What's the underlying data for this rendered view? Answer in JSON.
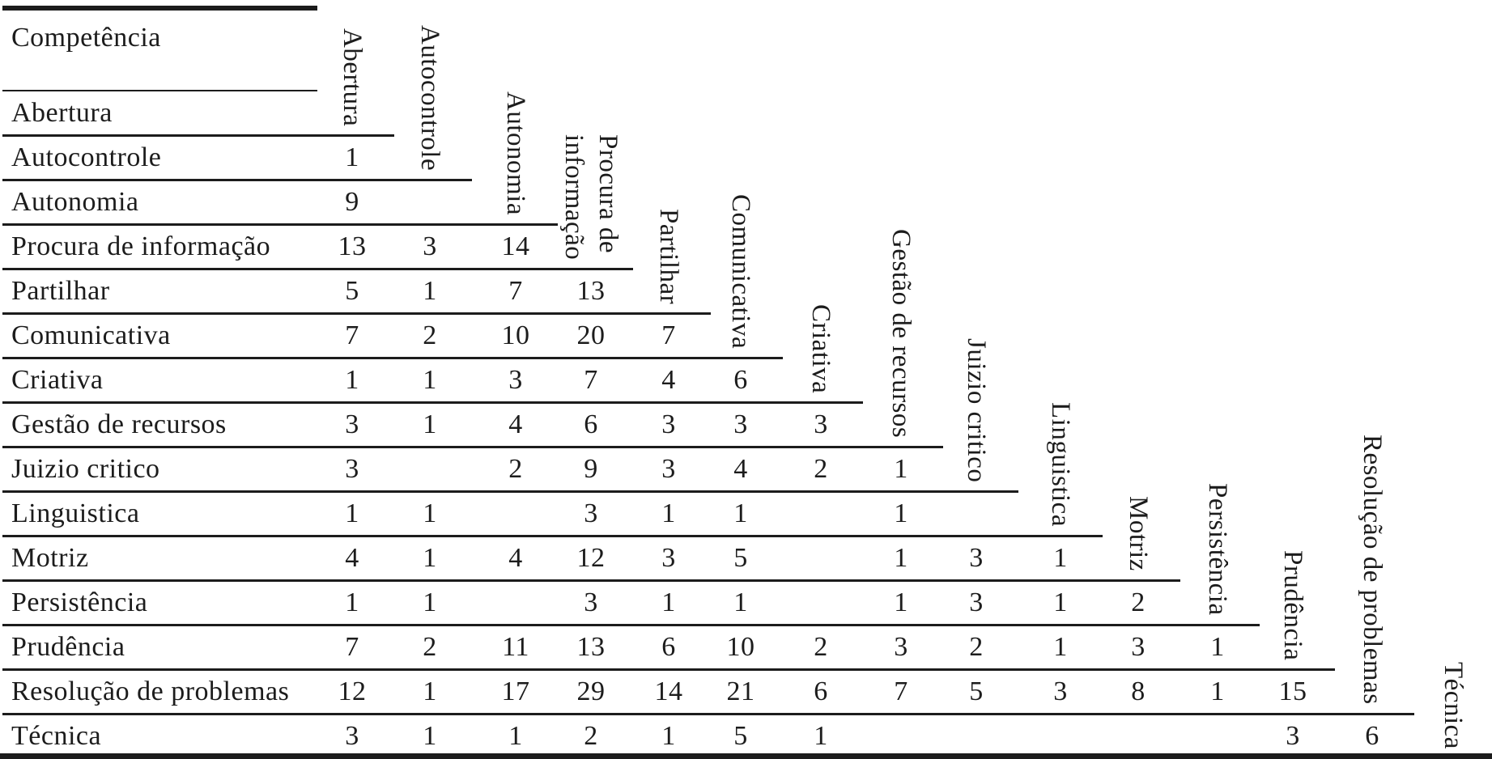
{
  "corner": {
    "label": "Competência"
  },
  "columns": [
    {
      "label": "Abertura"
    },
    {
      "label": "Autocontrole"
    },
    {
      "label": "Autonomia"
    },
    {
      "label": "Procura de\ninformação"
    },
    {
      "label": "Partilhar"
    },
    {
      "label": "Comunicativa"
    },
    {
      "label": "Criativa"
    },
    {
      "label": "Gestão de recursos"
    },
    {
      "label": "Juizio critico"
    },
    {
      "label": "Linguistica"
    },
    {
      "label": "Motriz"
    },
    {
      "label": "Persistência"
    },
    {
      "label": "Prudência"
    },
    {
      "label": "Resolução de problemas"
    },
    {
      "label": "Técnica"
    }
  ],
  "rows": [
    {
      "label": "Abertura",
      "values": []
    },
    {
      "label": "Autocontrole",
      "values": [
        "1"
      ]
    },
    {
      "label": "Autonomia",
      "values": [
        "9",
        ""
      ]
    },
    {
      "label": "Procura de informação",
      "values": [
        "13",
        "3",
        "14"
      ]
    },
    {
      "label": "Partilhar",
      "values": [
        "5",
        "1",
        "7",
        "13"
      ]
    },
    {
      "label": "Comunicativa",
      "values": [
        "7",
        "2",
        "10",
        "20",
        "7"
      ]
    },
    {
      "label": "Criativa",
      "values": [
        "1",
        "1",
        "3",
        "7",
        "4",
        "6"
      ]
    },
    {
      "label": "Gestão de recursos",
      "values": [
        "3",
        "1",
        "4",
        "6",
        "3",
        "3",
        "3"
      ]
    },
    {
      "label": "Juizio critico",
      "values": [
        "3",
        "",
        "2",
        "9",
        "3",
        "4",
        "2",
        "1"
      ]
    },
    {
      "label": "Linguistica",
      "values": [
        "1",
        "1",
        "",
        "3",
        "1",
        "1",
        "",
        "1",
        ""
      ]
    },
    {
      "label": "Motriz",
      "values": [
        "4",
        "1",
        "4",
        "12",
        "3",
        "5",
        "",
        "1",
        "3",
        "1"
      ]
    },
    {
      "label": "Persistência",
      "values": [
        "1",
        "1",
        "",
        "3",
        "1",
        "1",
        "",
        "1",
        "3",
        "1",
        "2"
      ]
    },
    {
      "label": "Prudência",
      "values": [
        "7",
        "2",
        "11",
        "13",
        "6",
        "10",
        "2",
        "3",
        "2",
        "1",
        "3",
        "1"
      ]
    },
    {
      "label": "Resolução de problemas",
      "values": [
        "12",
        "1",
        "17",
        "29",
        "14",
        "21",
        "6",
        "7",
        "5",
        "3",
        "8",
        "1",
        "15"
      ]
    },
    {
      "label": "Técnica",
      "values": [
        "3",
        "1",
        "1",
        "2",
        "1",
        "5",
        "1",
        "",
        "",
        "",
        "",
        "",
        "3",
        "6"
      ]
    }
  ],
  "colors": {
    "ink": "#1c1c1c",
    "background": "#ffffff"
  }
}
